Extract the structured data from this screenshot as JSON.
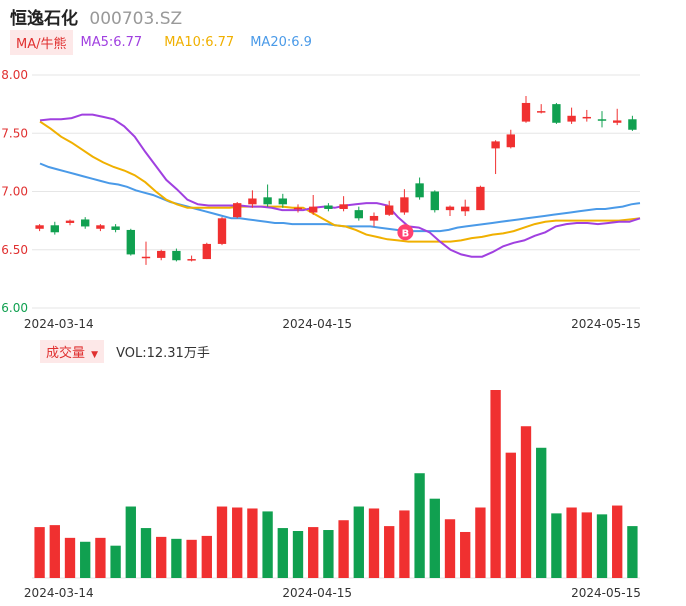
{
  "header": {
    "name": "恒逸石化",
    "code": "000703.SZ"
  },
  "ma_legend": {
    "label": "MA/牛熊",
    "items": [
      {
        "text": "MA5:6.77",
        "color": "#a040e0"
      },
      {
        "text": "MA10:6.77",
        "color": "#f0b000"
      },
      {
        "text": "MA20:6.9",
        "color": "#4a9ae8"
      }
    ]
  },
  "volume_legend": {
    "label": "成交量",
    "arrow": "▼",
    "value": "VOL:12.31万手"
  },
  "colors": {
    "up": "#f03030",
    "down": "#10a050",
    "grid": "#e6e6e6",
    "axis_text": "#e03030",
    "date_text": "#333333"
  },
  "marker": {
    "text": "B",
    "color": "#ff4070"
  },
  "chart_data": [
    {
      "type": "candlestick",
      "y_ticks": [
        "8.00",
        "7.50",
        "7.00",
        "6.50",
        "6.00"
      ],
      "ylim": [
        6.0,
        8.0
      ],
      "x_ticks": [
        "2024-03-14",
        "2024-04-15",
        "2024-05-15"
      ],
      "x_tick_index": [
        1,
        18,
        37
      ],
      "candles": [
        [
          6.68,
          6.71,
          6.66,
          6.72
        ],
        [
          6.71,
          6.65,
          6.63,
          6.74
        ],
        [
          6.73,
          6.75,
          6.71,
          6.76
        ],
        [
          6.76,
          6.7,
          6.68,
          6.78
        ],
        [
          6.68,
          6.71,
          6.66,
          6.72
        ],
        [
          6.7,
          6.67,
          6.65,
          6.72
        ],
        [
          6.67,
          6.46,
          6.45,
          6.68
        ],
        [
          6.44,
          6.44,
          6.37,
          6.57
        ],
        [
          6.43,
          6.49,
          6.41,
          6.5
        ],
        [
          6.49,
          6.41,
          6.4,
          6.51
        ],
        [
          6.41,
          6.42,
          6.4,
          6.45
        ],
        [
          6.42,
          6.55,
          6.42,
          6.56
        ],
        [
          6.55,
          6.77,
          6.54,
          6.78
        ],
        [
          6.78,
          6.9,
          6.77,
          6.91
        ],
        [
          6.89,
          6.94,
          6.86,
          7.01
        ],
        [
          6.95,
          6.89,
          6.87,
          7.06
        ],
        [
          6.94,
          6.89,
          6.86,
          6.98
        ],
        [
          6.86,
          6.86,
          6.82,
          6.89
        ],
        [
          6.82,
          6.87,
          6.8,
          6.97
        ],
        [
          6.88,
          6.85,
          6.83,
          6.9
        ],
        [
          6.85,
          6.89,
          6.83,
          6.96
        ],
        [
          6.84,
          6.77,
          6.75,
          6.87
        ],
        [
          6.75,
          6.79,
          6.7,
          6.82
        ],
        [
          6.8,
          6.88,
          6.79,
          6.92
        ],
        [
          6.82,
          6.95,
          6.8,
          7.02
        ],
        [
          7.07,
          6.95,
          6.93,
          7.12
        ],
        [
          7.0,
          6.84,
          6.82,
          7.01
        ],
        [
          6.84,
          6.87,
          6.79,
          6.88
        ],
        [
          6.83,
          6.87,
          6.79,
          6.93
        ],
        [
          6.84,
          7.04,
          6.84,
          7.05
        ],
        [
          7.37,
          7.43,
          7.15,
          7.44
        ],
        [
          7.38,
          7.49,
          7.37,
          7.53
        ],
        [
          7.6,
          7.76,
          7.59,
          7.82
        ],
        [
          7.69,
          7.69,
          7.67,
          7.75
        ],
        [
          7.75,
          7.59,
          7.58,
          7.76
        ],
        [
          7.6,
          7.65,
          7.58,
          7.72
        ],
        [
          7.64,
          7.64,
          7.6,
          7.7
        ],
        [
          7.62,
          7.61,
          7.55,
          7.69
        ],
        [
          7.59,
          7.61,
          7.57,
          7.71
        ],
        [
          7.62,
          7.53,
          7.52,
          7.65
        ]
      ],
      "ma5": [
        7.61,
        7.62,
        7.62,
        7.63,
        7.66,
        7.66,
        7.64,
        7.62,
        7.56,
        7.47,
        7.34,
        7.22,
        7.1,
        7.02,
        6.93,
        6.89,
        6.88,
        6.88,
        6.88,
        6.88,
        6.87,
        6.87,
        6.86,
        6.84,
        6.84,
        6.84,
        6.86,
        6.87,
        6.86,
        6.88,
        6.89,
        6.9,
        6.9,
        6.88,
        6.78,
        6.7,
        6.69,
        6.65,
        6.57,
        6.5,
        6.46,
        6.44,
        6.44,
        6.48,
        6.53,
        6.56,
        6.58,
        6.62,
        6.65,
        6.7,
        6.72,
        6.73,
        6.73,
        6.72,
        6.73,
        6.74,
        6.74,
        6.77
      ],
      "ma10": [
        7.6,
        7.54,
        7.47,
        7.42,
        7.36,
        7.3,
        7.25,
        7.21,
        7.18,
        7.14,
        7.08,
        7.0,
        6.93,
        6.89,
        6.86,
        6.86,
        6.86,
        6.86,
        6.86,
        6.87,
        6.87,
        6.87,
        6.87,
        6.87,
        6.86,
        6.86,
        6.81,
        6.76,
        6.71,
        6.7,
        6.67,
        6.63,
        6.61,
        6.59,
        6.58,
        6.57,
        6.57,
        6.57,
        6.57,
        6.57,
        6.58,
        6.6,
        6.61,
        6.63,
        6.64,
        6.66,
        6.69,
        6.72,
        6.74,
        6.75,
        6.75,
        6.75,
        6.75,
        6.75,
        6.75,
        6.75,
        6.76,
        6.77
      ],
      "ma20": [
        7.24,
        7.21,
        7.19,
        7.17,
        7.15,
        7.13,
        7.11,
        7.09,
        7.07,
        7.06,
        7.04,
        7.01,
        6.99,
        6.97,
        6.94,
        6.91,
        6.89,
        6.87,
        6.85,
        6.83,
        6.81,
        6.79,
        6.77,
        6.77,
        6.76,
        6.75,
        6.74,
        6.73,
        6.73,
        6.72,
        6.72,
        6.72,
        6.72,
        6.72,
        6.71,
        6.7,
        6.7,
        6.7,
        6.7,
        6.69,
        6.68,
        6.67,
        6.66,
        6.66,
        6.66,
        6.66,
        6.66,
        6.67,
        6.69,
        6.7,
        6.71,
        6.72,
        6.73,
        6.74,
        6.75,
        6.76,
        6.77,
        6.78,
        6.79,
        6.8,
        6.81,
        6.82,
        6.83,
        6.84,
        6.85,
        6.85,
        6.86,
        6.87,
        6.89,
        6.9
      ]
    },
    {
      "type": "bar",
      "name": "volume",
      "values": [
        5.2,
        5.4,
        4.1,
        3.7,
        4.1,
        3.3,
        7.3,
        5.1,
        4.2,
        4.0,
        3.9,
        4.3,
        7.3,
        7.2,
        7.1,
        6.8,
        5.1,
        4.8,
        5.2,
        4.9,
        5.9,
        7.3,
        7.1,
        5.3,
        6.9,
        10.7,
        8.1,
        6.0,
        4.7,
        7.2,
        19.2,
        12.8,
        15.5,
        13.3,
        6.6,
        7.2,
        6.7,
        6.5,
        7.4,
        5.3
      ],
      "direction": [
        "up",
        "up",
        "up",
        "down",
        "up",
        "down",
        "down",
        "down",
        "up",
        "down",
        "up",
        "up",
        "up",
        "up",
        "up",
        "down",
        "down",
        "down",
        "up",
        "down",
        "up",
        "down",
        "up",
        "up",
        "up",
        "down",
        "down",
        "up",
        "up",
        "up",
        "up",
        "up",
        "up",
        "down",
        "down",
        "up",
        "up",
        "down",
        "up",
        "down"
      ]
    }
  ]
}
